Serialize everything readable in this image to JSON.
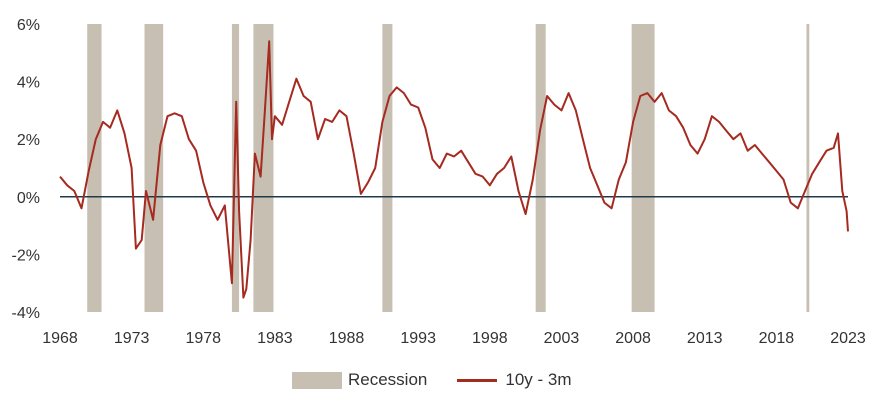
{
  "chart_data": {
    "type": "line",
    "title": "",
    "xlabel": "",
    "ylabel": "",
    "xlim": [
      1968,
      2023
    ],
    "ylim": [
      -4,
      6
    ],
    "x_ticks": [
      1968,
      1973,
      1978,
      1983,
      1988,
      1993,
      1998,
      2003,
      2008,
      2013,
      2018,
      2023
    ],
    "y_ticks": [
      {
        "value": -4,
        "label": "-4%"
      },
      {
        "value": -2,
        "label": "-2%"
      },
      {
        "value": 0,
        "label": "0%"
      },
      {
        "value": 2,
        "label": "2%"
      },
      {
        "value": 4,
        "label": "4%"
      },
      {
        "value": 6,
        "label": "6%"
      }
    ],
    "recessions": [
      [
        1969.9,
        1970.9
      ],
      [
        1973.9,
        1975.2
      ],
      [
        1980.0,
        1980.5
      ],
      [
        1981.5,
        1982.9
      ],
      [
        1990.5,
        1991.2
      ],
      [
        2001.2,
        2001.9
      ],
      [
        2007.9,
        2009.5
      ],
      [
        2020.1,
        2020.3
      ]
    ],
    "series": [
      {
        "name": "10y - 3m",
        "color": "#a52a1f",
        "x": [
          1968.0,
          1968.5,
          1969.0,
          1969.5,
          1970.0,
          1970.5,
          1971.0,
          1971.5,
          1972.0,
          1972.5,
          1973.0,
          1973.3,
          1973.7,
          1974.0,
          1974.5,
          1975.0,
          1975.5,
          1976.0,
          1976.5,
          1977.0,
          1977.5,
          1978.0,
          1978.5,
          1979.0,
          1979.5,
          1980.0,
          1980.3,
          1980.5,
          1980.8,
          1981.0,
          1981.3,
          1981.6,
          1982.0,
          1982.3,
          1982.6,
          1982.8,
          1983.0,
          1983.5,
          1984.0,
          1984.5,
          1985.0,
          1985.5,
          1986.0,
          1986.5,
          1987.0,
          1987.5,
          1988.0,
          1988.5,
          1989.0,
          1989.5,
          1990.0,
          1990.5,
          1991.0,
          1991.5,
          1992.0,
          1992.5,
          1993.0,
          1993.5,
          1994.0,
          1994.5,
          1995.0,
          1995.5,
          1996.0,
          1996.5,
          1997.0,
          1997.5,
          1998.0,
          1998.5,
          1999.0,
          1999.5,
          2000.0,
          2000.5,
          2001.0,
          2001.5,
          2002.0,
          2002.5,
          2003.0,
          2003.5,
          2004.0,
          2004.5,
          2005.0,
          2005.5,
          2006.0,
          2006.5,
          2007.0,
          2007.5,
          2008.0,
          2008.5,
          2009.0,
          2009.5,
          2010.0,
          2010.5,
          2011.0,
          2011.5,
          2012.0,
          2012.5,
          2013.0,
          2013.5,
          2014.0,
          2014.5,
          2015.0,
          2015.5,
          2016.0,
          2016.5,
          2017.0,
          2017.5,
          2018.0,
          2018.5,
          2019.0,
          2019.5,
          2020.0,
          2020.5,
          2021.0,
          2021.5,
          2022.0,
          2022.3,
          2022.6,
          2022.9,
          2023.0
        ],
        "values": [
          0.7,
          0.4,
          0.2,
          -0.4,
          0.9,
          2.0,
          2.6,
          2.4,
          3.0,
          2.2,
          1.0,
          -1.8,
          -1.5,
          0.2,
          -0.8,
          1.8,
          2.8,
          2.9,
          2.8,
          2.0,
          1.6,
          0.5,
          -0.3,
          -0.8,
          -0.3,
          -3.0,
          3.3,
          -0.5,
          -3.5,
          -3.2,
          -1.5,
          1.5,
          0.7,
          3.0,
          5.4,
          2.0,
          2.8,
          2.5,
          3.3,
          4.1,
          3.5,
          3.3,
          2.0,
          2.7,
          2.6,
          3.0,
          2.8,
          1.5,
          0.1,
          0.5,
          1.0,
          2.6,
          3.5,
          3.8,
          3.6,
          3.2,
          3.1,
          2.4,
          1.3,
          1.0,
          1.5,
          1.4,
          1.6,
          1.2,
          0.8,
          0.7,
          0.4,
          0.8,
          1.0,
          1.4,
          0.2,
          -0.6,
          0.6,
          2.3,
          3.5,
          3.2,
          3.0,
          3.6,
          3.0,
          2.0,
          1.0,
          0.4,
          -0.2,
          -0.4,
          0.6,
          1.2,
          2.6,
          3.5,
          3.6,
          3.3,
          3.6,
          3.0,
          2.8,
          2.4,
          1.8,
          1.5,
          2.0,
          2.8,
          2.6,
          2.3,
          2.0,
          2.2,
          1.6,
          1.8,
          1.5,
          1.2,
          0.9,
          0.6,
          -0.2,
          -0.4,
          0.2,
          0.8,
          1.2,
          1.6,
          1.7,
          2.2,
          0.2,
          -0.5,
          -1.2
        ]
      }
    ],
    "legend": {
      "placement": "bottom",
      "recession_label": "Recession",
      "series_label": "10y - 3m"
    },
    "colors": {
      "recession": "#c8bfb3",
      "line": "#a52a1f",
      "zero_line": "#1f3a4a"
    }
  }
}
